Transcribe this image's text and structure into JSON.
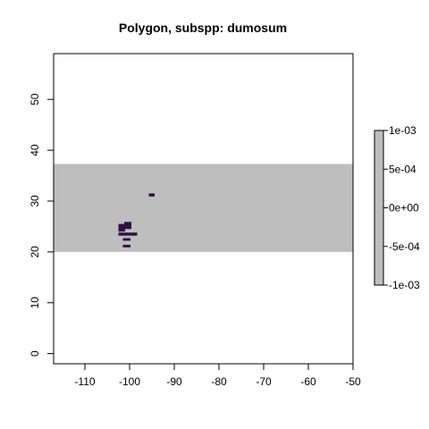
{
  "chart_data": {
    "type": "heatmap",
    "title": "Polygon, subspp: dumosum",
    "xlabel": "",
    "ylabel": "",
    "xlim": [
      -117,
      -50
    ],
    "ylim": [
      -2,
      59
    ],
    "grid": false,
    "x_ticks": [
      -110,
      -100,
      -90,
      -80,
      -70,
      -60,
      -50
    ],
    "x_tick_labels": [
      "-110",
      "-100",
      "-90",
      "-80",
      "-70",
      "-60",
      "-50"
    ],
    "y_ticks": [
      0,
      10,
      20,
      30,
      40,
      50
    ],
    "y_tick_labels": [
      "0",
      "10",
      "20",
      "30",
      "40",
      "50"
    ],
    "band": {
      "ymin": 20,
      "ymax": 37.3,
      "color": "#bebebe"
    },
    "cells": [
      {
        "xmin": -95.7,
        "xmax": -94.4,
        "ymin": 30.9,
        "ymax": 31.5
      },
      {
        "xmin": -102.5,
        "xmax": -101.0,
        "ymin": 24.0,
        "ymax": 25.5
      },
      {
        "xmin": -101.2,
        "xmax": -99.6,
        "ymin": 24.5,
        "ymax": 25.9
      },
      {
        "xmin": -102.5,
        "xmax": -98.3,
        "ymin": 23.2,
        "ymax": 23.8
      },
      {
        "xmin": -101.5,
        "xmax": -99.8,
        "ymin": 22.2,
        "ymax": 22.7
      },
      {
        "xmin": -101.5,
        "xmax": -99.8,
        "ymin": 20.9,
        "ymax": 21.4
      }
    ],
    "cell_color": "#2d1140",
    "legend": {
      "position": "right",
      "colors": [
        "#bebebe"
      ],
      "ticks": [
        0.001,
        0.0005,
        0,
        -0.0005,
        -0.001
      ],
      "tick_labels": [
        "1e-03",
        "5e-04",
        "0e+00",
        "-5e-04",
        "-1e-03"
      ]
    }
  }
}
